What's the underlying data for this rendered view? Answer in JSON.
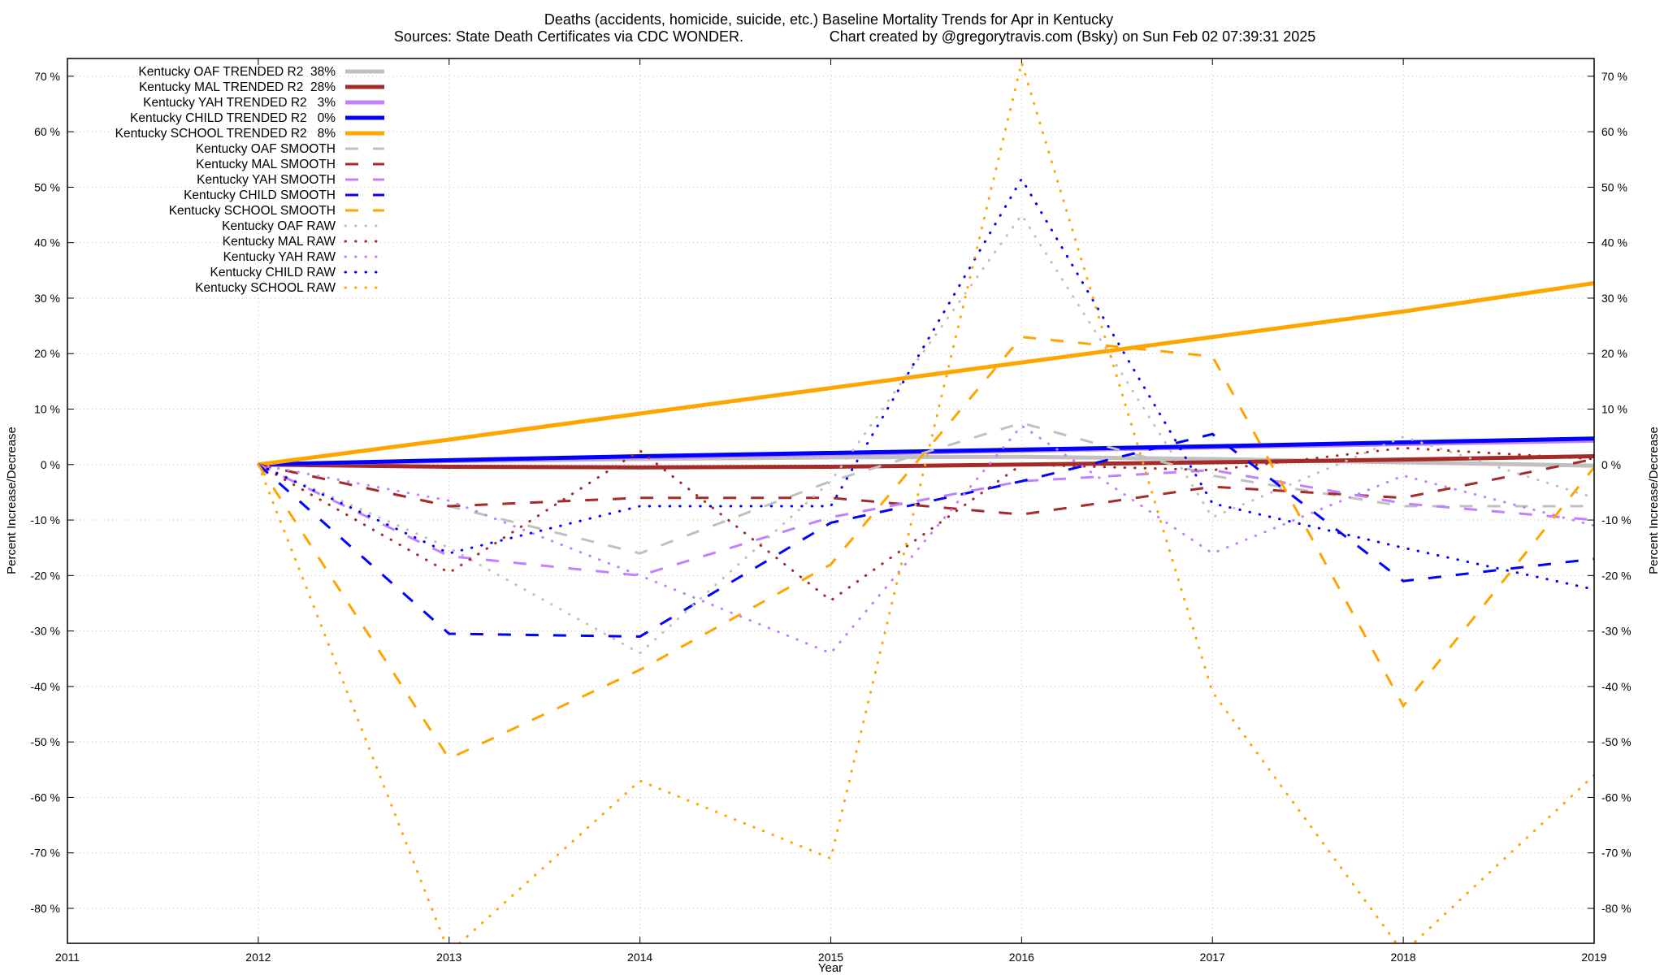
{
  "chart_data": {
    "type": "line",
    "title": "Deaths (accidents, homicide, suicide, etc.)  Baseline Mortality Trends for Apr in Kentucky",
    "subtitle_left": "Sources: State Death Certificates via CDC WONDER.",
    "subtitle_right": "Chart created by @gregorytravis.com (Bsky) on Sun Feb 02 07:39:31 2025",
    "xlabel": "Year",
    "ylabel": "Percent Increase/Decrease",
    "y2label": "Percent Increase/Decrease",
    "xlim": [
      2011,
      2019
    ],
    "ylim": [
      -86.3,
      73.2
    ],
    "grid": true,
    "legend_position": "top-left",
    "x_ticks": [
      "2011",
      "2012",
      "2013",
      "2014",
      "2015",
      "2016",
      "2017",
      "2018",
      "2019"
    ],
    "y_ticks": [
      "70 %",
      "60 %",
      "50 %",
      "40 %",
      "30 %",
      "20 %",
      "10 %",
      "0 %",
      "-10 %",
      "-20 %",
      "-30 %",
      "-40 %",
      "-50 %",
      "-60 %",
      "-70 %",
      "-80 %"
    ],
    "y_tick_values": [
      70,
      60,
      50,
      40,
      30,
      20,
      10,
      0,
      -10,
      -20,
      -30,
      -40,
      -50,
      -60,
      -70,
      -80
    ],
    "x": [
      2012,
      2013,
      2014,
      2015,
      2016,
      2017,
      2018,
      2019
    ],
    "series": [
      {
        "name": "Kentucky OAF TRENDED R2  38%",
        "style": "trend",
        "color": "#c0c0c0",
        "values": [
          0,
          0.6,
          1.0,
          1.3,
          1.4,
          1.0,
          0.4,
          -0.2
        ]
      },
      {
        "name": "Kentucky MAL TRENDED R2  28%",
        "style": "trend",
        "color": "#a52a2a",
        "values": [
          0,
          -0.4,
          -0.5,
          -0.4,
          0,
          0.4,
          0.9,
          1.5
        ]
      },
      {
        "name": "Kentucky YAH TRENDED R2   3%",
        "style": "trend",
        "color": "#c080ff",
        "values": [
          0,
          0.7,
          1.3,
          1.9,
          2.5,
          3.1,
          3.7,
          4.3
        ]
      },
      {
        "name": "Kentucky CHILD TRENDED R2   0%",
        "style": "trend",
        "color": "#0000ff",
        "values": [
          0,
          0.8,
          1.5,
          2.1,
          2.7,
          3.3,
          4.0,
          4.7
        ]
      },
      {
        "name": "Kentucky SCHOOL TRENDED R2   8%",
        "style": "trend",
        "color": "#ffa500",
        "values": [
          0,
          4.5,
          9.2,
          13.8,
          18.4,
          23.0,
          27.6,
          32.7
        ]
      },
      {
        "name": "Kentucky OAF SMOOTH",
        "style": "smooth",
        "color": "#c0c0c0",
        "values": [
          0,
          -7.5,
          -16,
          -3,
          7.5,
          -2,
          -7.5,
          -7.5
        ]
      },
      {
        "name": "Kentucky MAL SMOOTH",
        "style": "smooth",
        "color": "#a52a2a",
        "values": [
          0,
          -7.5,
          -6,
          -6,
          -9,
          -4,
          -6,
          1
        ]
      },
      {
        "name": "Kentucky YAH SMOOTH",
        "style": "smooth",
        "color": "#c080ff",
        "values": [
          0,
          -16.5,
          -20,
          -9.5,
          -3,
          -1,
          -7,
          -10
        ]
      },
      {
        "name": "Kentucky CHILD SMOOTH",
        "style": "smooth",
        "color": "#0000ff",
        "values": [
          0,
          -30.5,
          -31,
          -10.5,
          -3,
          5.5,
          -21,
          -17
        ]
      },
      {
        "name": "Kentucky SCHOOL SMOOTH",
        "style": "smooth",
        "color": "#ffa500",
        "values": [
          0,
          -53,
          -37,
          -18,
          23,
          19.5,
          -43.5,
          -0.5
        ]
      },
      {
        "name": "Kentucky OAF RAW",
        "style": "raw",
        "color": "#c0c0c0",
        "values": [
          0,
          -15,
          -34,
          -3,
          45,
          -9.5,
          5,
          -6
        ]
      },
      {
        "name": "Kentucky MAL RAW",
        "style": "raw",
        "color": "#a52a2a",
        "values": [
          0,
          -19.5,
          2.5,
          -24.5,
          0,
          -1,
          3,
          1
        ]
      },
      {
        "name": "Kentucky YAH RAW",
        "style": "raw",
        "color": "#c080ff",
        "values": [
          0,
          -6.5,
          -20,
          -34,
          7,
          -16,
          -2,
          -11
        ]
      },
      {
        "name": "Kentucky CHILD RAW",
        "style": "raw",
        "color": "#0000ff",
        "values": [
          0,
          -16,
          -7.5,
          -7.5,
          51.5,
          -7,
          -15,
          -22.5
        ]
      },
      {
        "name": "Kentucky SCHOOL RAW",
        "style": "raw",
        "color": "#ffa500",
        "values": [
          0,
          -88,
          -57,
          -71,
          72.5,
          -41,
          -88,
          -56
        ]
      }
    ]
  }
}
